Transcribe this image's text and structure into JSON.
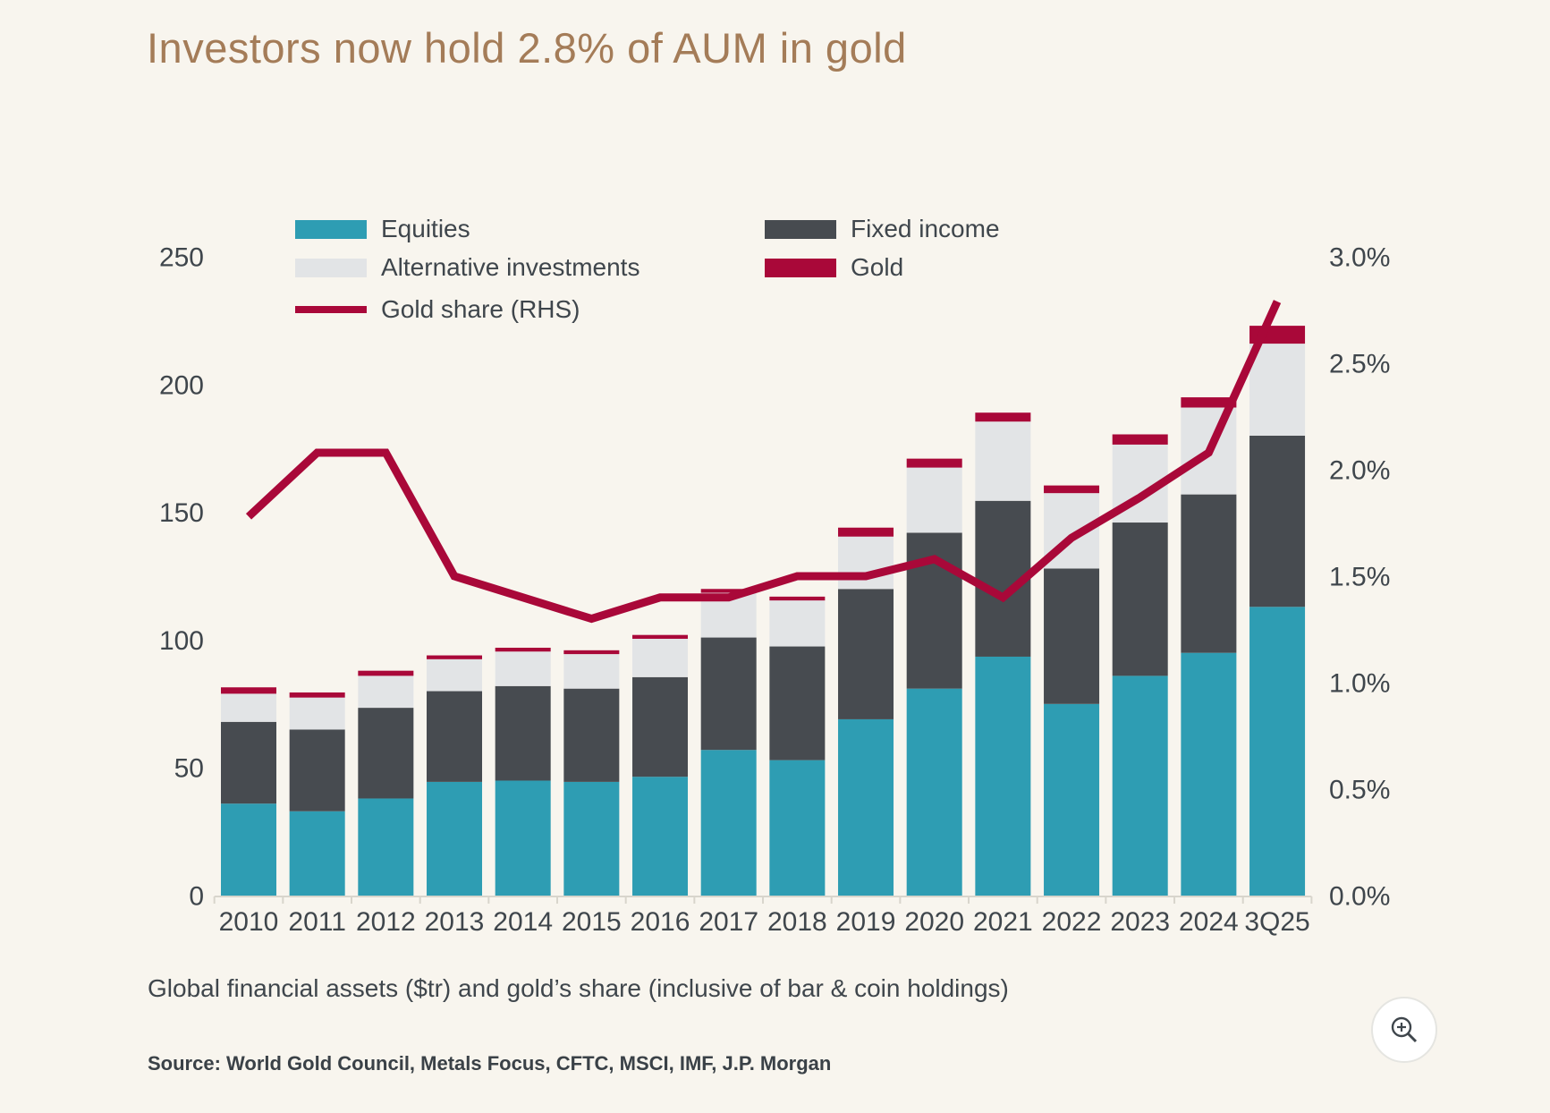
{
  "title": "Investors now hold 2.8% of AUM in gold",
  "legend": {
    "equities": "Equities",
    "fixed_income": "Fixed income",
    "alternative_investments": "Alternative investments",
    "gold": "Gold",
    "gold_share": "Gold share (RHS)"
  },
  "caption": "Global financial assets ($tr) and gold’s share (inclusive of bar & coin holdings)",
  "source": "Source: World Gold Council, Metals Focus, CFTC, MSCI, IMF, J.P. Morgan",
  "zoom_button": {
    "icon": "magnifier-plus-icon"
  },
  "colors": {
    "background": "#F8F5EE",
    "title": "#A47C58",
    "text": "#3F464C",
    "equities": "#2E9DB3",
    "fixed_income": "#474B50",
    "alternative_investments": "#E2E4E6",
    "gold": "#A90839",
    "gold_share_line": "#A90839",
    "axis_line": "#D8D5CC"
  },
  "chart_data": {
    "type": "bar",
    "stacked": true,
    "overlay_line_type": "line",
    "legend_position": "top",
    "grid": false,
    "categories": [
      "2010",
      "2011",
      "2012",
      "2013",
      "2014",
      "2015",
      "2016",
      "2017",
      "2018",
      "2019",
      "2020",
      "2021",
      "2022",
      "2023",
      "2024",
      "3Q25"
    ],
    "series": [
      {
        "name": "Equities",
        "values": [
          36,
          33,
          38,
          44.5,
          45,
          44.5,
          46.5,
          57,
          53,
          69,
          81,
          93.5,
          75,
          86,
          95,
          113
        ]
      },
      {
        "name": "Fixed income",
        "values": [
          32,
          32,
          35.5,
          35.5,
          37,
          36.5,
          39,
          44,
          44.5,
          51,
          61,
          61,
          53,
          60,
          62,
          67
        ]
      },
      {
        "name": "Alternative investments",
        "values": [
          11,
          12.5,
          12.5,
          12.5,
          13.5,
          13.5,
          15,
          17.5,
          18,
          20.5,
          25.5,
          31,
          29.5,
          30.5,
          34,
          36
        ]
      },
      {
        "name": "Gold",
        "values": [
          2.5,
          2,
          2,
          1.5,
          1.5,
          1.5,
          1.5,
          1.5,
          1.5,
          3.5,
          3.5,
          3.5,
          3,
          4,
          4,
          7
        ]
      }
    ],
    "line": {
      "name": "Gold share (RHS)",
      "axis": "right",
      "values_pct": [
        1.78,
        2.08,
        2.08,
        1.5,
        1.4,
        1.3,
        1.4,
        1.4,
        1.5,
        1.5,
        1.58,
        1.4,
        1.68,
        1.87,
        2.08,
        2.79
      ]
    },
    "left_axis": {
      "title": "",
      "range": [
        0,
        250
      ],
      "ticks": [
        0,
        50,
        100,
        150,
        200,
        250
      ]
    },
    "right_axis": {
      "title": "",
      "range": [
        0,
        3.0
      ],
      "ticks": [
        "0.0%",
        "0.5%",
        "1.0%",
        "1.5%",
        "2.0%",
        "2.5%",
        "3.0%"
      ],
      "tick_values": [
        0,
        0.5,
        1.0,
        1.5,
        2.0,
        2.5,
        3.0
      ]
    },
    "xlabel": "",
    "ylabel": ""
  }
}
